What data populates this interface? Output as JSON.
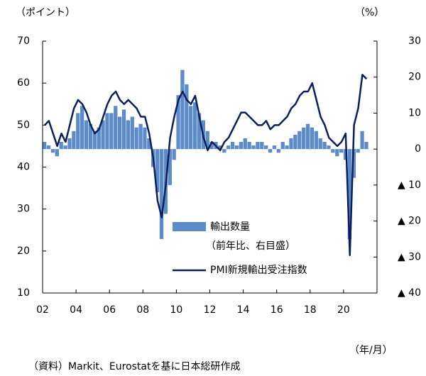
{
  "chart_data": {
    "type": "bar-line",
    "left_unit_label": "（ポイント）",
    "right_unit_label": "（%）",
    "x_unit_label": "（年/月）",
    "source": "（資料）Markit、Eurostatを基に日本総研作成",
    "x": [
      2002,
      2002.25,
      2002.5,
      2002.75,
      2003,
      2003.25,
      2003.5,
      2003.75,
      2004,
      2004.25,
      2004.5,
      2004.75,
      2005,
      2005.25,
      2005.5,
      2005.75,
      2006,
      2006.25,
      2006.5,
      2006.75,
      2007,
      2007.25,
      2007.5,
      2007.75,
      2008,
      2008.25,
      2008.5,
      2008.75,
      2009,
      2009.25,
      2009.5,
      2009.75,
      2010,
      2010.25,
      2010.5,
      2010.75,
      2011,
      2011.25,
      2011.5,
      2011.75,
      2012,
      2012.25,
      2012.5,
      2012.75,
      2013,
      2013.25,
      2013.5,
      2013.75,
      2014,
      2014.25,
      2014.5,
      2014.75,
      2015,
      2015.25,
      2015.5,
      2015.75,
      2016,
      2016.25,
      2016.5,
      2016.75,
      2017,
      2017.25,
      2017.5,
      2017.75,
      2018,
      2018.25,
      2018.5,
      2018.75,
      2019,
      2019.25,
      2019.5,
      2019.75,
      2020,
      2020.25,
      2020.5,
      2020.75,
      2021,
      2021.25
    ],
    "series": [
      {
        "name": "輸出数量",
        "name_note": "（前年比、右目盛）",
        "kind": "bar",
        "axis": "y2",
        "color": "#5b8bc9",
        "values": [
          2,
          1,
          -1,
          -2,
          2,
          1,
          3,
          5,
          10,
          12,
          8,
          7,
          5,
          6,
          8,
          10,
          10,
          12,
          9,
          11,
          8,
          9,
          6,
          7,
          6,
          3,
          -5,
          -12,
          -25,
          -18,
          -10,
          -3,
          15,
          22,
          18,
          12,
          13,
          10,
          8,
          5,
          2,
          2,
          1,
          -1,
          1,
          2,
          1,
          2,
          3,
          2,
          1,
          2,
          2,
          1,
          -1,
          1,
          -1,
          2,
          1,
          3,
          4,
          5,
          6,
          7,
          6,
          5,
          3,
          2,
          1,
          -1,
          -2,
          -1,
          -3,
          -25,
          -8,
          -1,
          5,
          2
        ]
      },
      {
        "name": "PMI新規輸出受注指数",
        "kind": "line",
        "axis": "y",
        "color": "#0b1f5c",
        "values": [
          50,
          51,
          48,
          45,
          48,
          46,
          50,
          54,
          56,
          55,
          53,
          50,
          48,
          49,
          52,
          55,
          57,
          58,
          56,
          55,
          56,
          55,
          54,
          52,
          52,
          48,
          42,
          32,
          28,
          36,
          47,
          52,
          56,
          58,
          56,
          55,
          57,
          52,
          47,
          44,
          46,
          45,
          44,
          46,
          47,
          49,
          51,
          53,
          53,
          52,
          51,
          50,
          50,
          51,
          49,
          50,
          50,
          51,
          52,
          54,
          55,
          57,
          58,
          58,
          60,
          56,
          52,
          50,
          47,
          46,
          45,
          46,
          48,
          19,
          50,
          54,
          62,
          61
        ]
      }
    ],
    "xlim": [
      2002,
      2022
    ],
    "xticks": [
      {
        "value": 2002,
        "label": "02"
      },
      {
        "value": 2004,
        "label": "04"
      },
      {
        "value": 2006,
        "label": "06"
      },
      {
        "value": 2008,
        "label": "08"
      },
      {
        "value": 2010,
        "label": "10"
      },
      {
        "value": 2012,
        "label": "12"
      },
      {
        "value": 2014,
        "label": "14"
      },
      {
        "value": 2016,
        "label": "16"
      },
      {
        "value": 2018,
        "label": "18"
      },
      {
        "value": 2020,
        "label": "20"
      }
    ],
    "ylim": [
      10,
      70
    ],
    "yticks": [
      10,
      20,
      30,
      40,
      50,
      60,
      70
    ],
    "y2lim": [
      -40,
      30
    ],
    "y2ticks": [
      {
        "value": -40,
        "label": "▲ 40"
      },
      {
        "value": -30,
        "label": "▲ 30"
      },
      {
        "value": -20,
        "label": "▲ 20"
      },
      {
        "value": -10,
        "label": "▲ 10"
      },
      0,
      10,
      20,
      30
    ]
  }
}
